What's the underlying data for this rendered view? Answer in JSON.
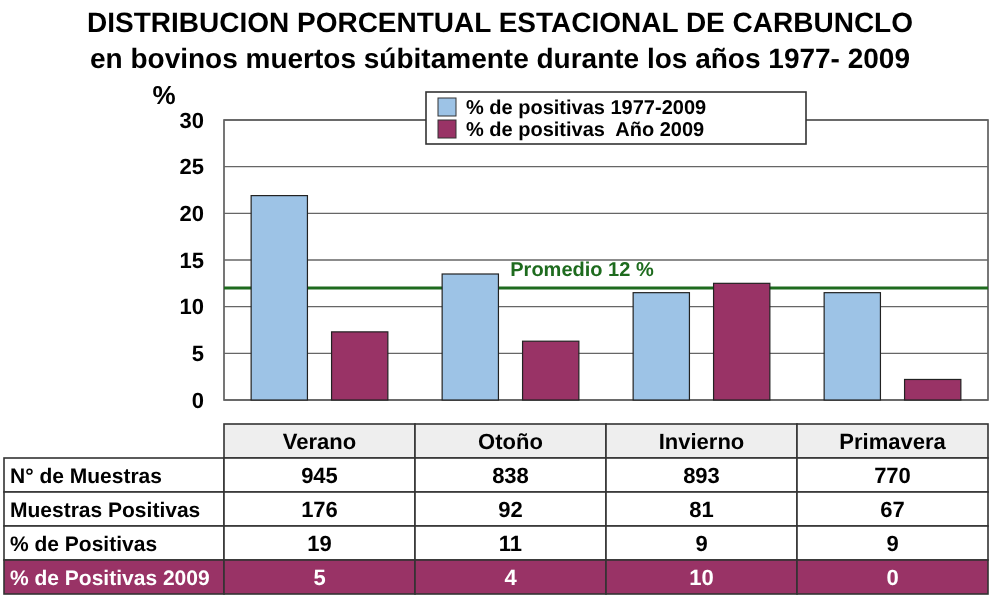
{
  "chart_data": {
    "type": "bar",
    "title": "DISTRIBUCION PORCENTUAL ESTACIONAL DE CARBUNCLO",
    "subtitle": "en bovinos muertos súbitamente durante los años 1977- 2009",
    "ylabel": "%",
    "categories": [
      "Verano",
      "Otoño",
      "Invierno",
      "Primavera"
    ],
    "series": [
      {
        "name": "% de positivas 1977-2009",
        "color": "#9dc3e6",
        "values": [
          21.9,
          13.5,
          11.5,
          11.5
        ]
      },
      {
        "name": "% de positivas  Año 2009",
        "color": "#993366",
        "values": [
          7.3,
          6.3,
          12.5,
          2.2
        ]
      }
    ],
    "ylim": [
      0,
      30
    ],
    "yticks": [
      0,
      5,
      10,
      15,
      20,
      25,
      30
    ],
    "grid": "y",
    "legend": "top",
    "ref_lines": [
      {
        "axis": "y",
        "value": 12,
        "label": "Promedio 12 %",
        "color": "#1e6b1e"
      }
    ],
    "annotations": [
      "N° de Muestras",
      "945",
      "838",
      "893",
      "770",
      "Muestras Positivas",
      "176",
      "92",
      "81",
      "67",
      "% de Positivas",
      "19",
      "11",
      "9",
      "9",
      "% de Positivas 2009",
      "5",
      "4",
      "10",
      "0"
    ]
  }
}
